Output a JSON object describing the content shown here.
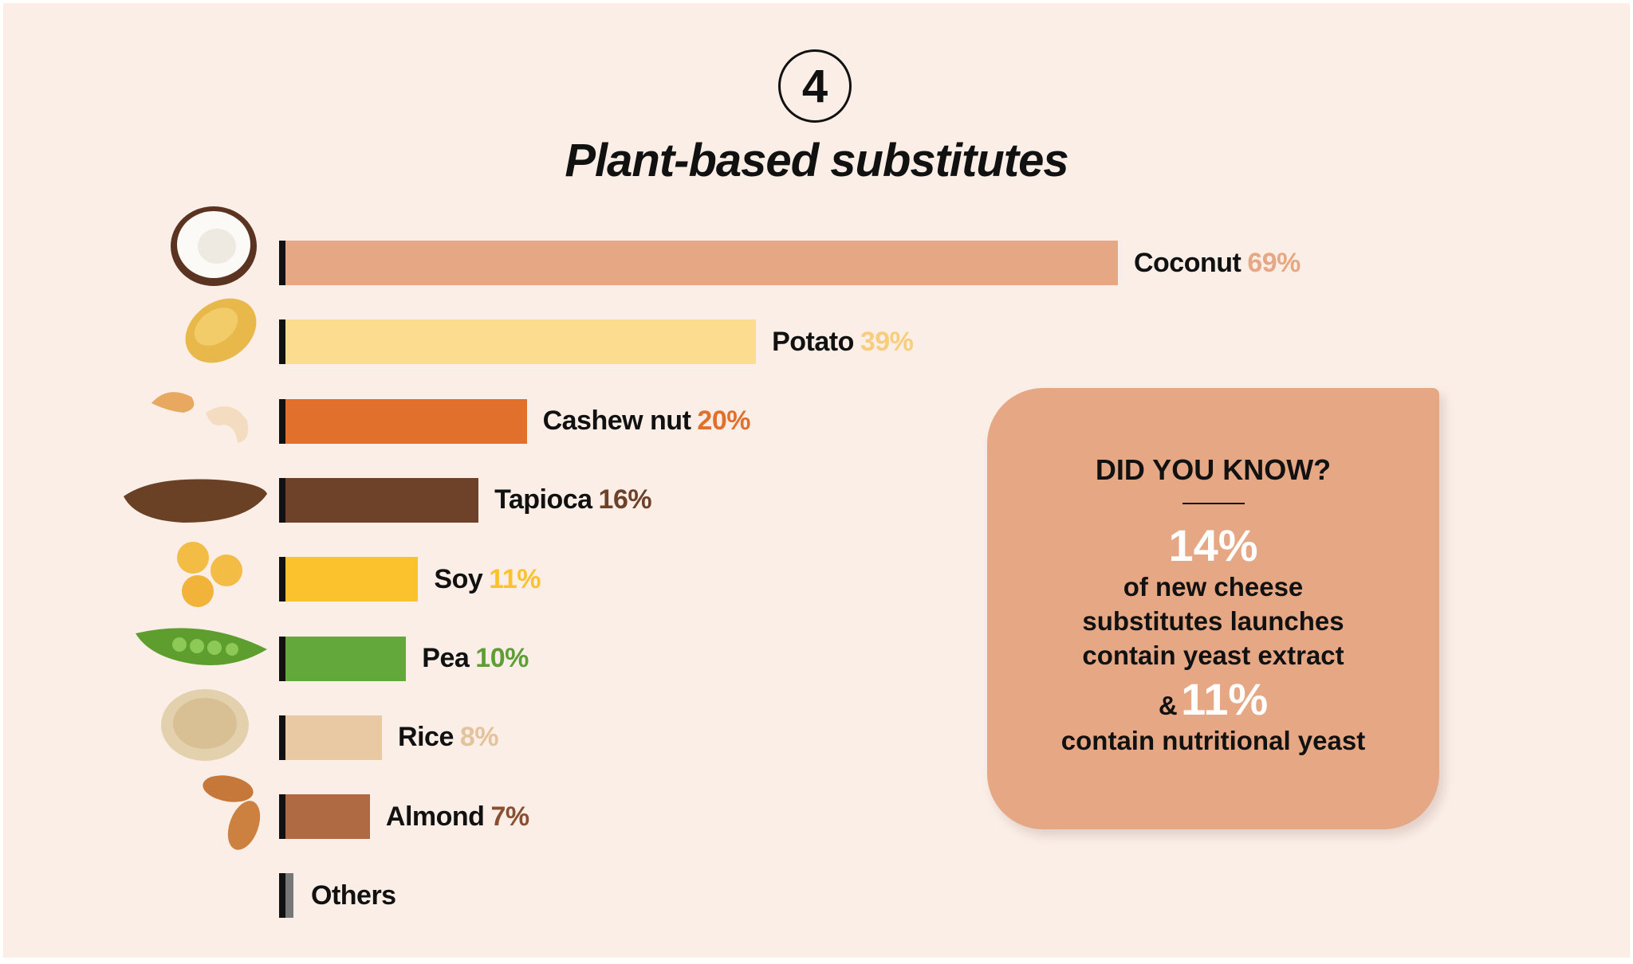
{
  "step_number": "4",
  "chart_data": {
    "type": "bar",
    "orientation": "horizontal",
    "title": "Plant-based substitutes",
    "categories": [
      "Coconut",
      "Potato",
      "Cashew nut",
      "Tapioca",
      "Soy",
      "Pea",
      "Rice",
      "Almond",
      "Others"
    ],
    "values": [
      69,
      39,
      20,
      16,
      11,
      10,
      8,
      7,
      null
    ],
    "value_labels": [
      "69%",
      "39%",
      "20%",
      "16%",
      "11%",
      "10%",
      "8%",
      "7%",
      ""
    ],
    "colors": [
      "#E6A884",
      "#FCDC8E",
      "#E0702C",
      "#6E4129",
      "#FCC22E",
      "#63A83A",
      "#E8C9A4",
      "#B06A43",
      "#777777"
    ],
    "label_colors": [
      "#E6A884",
      "#F8CE7E",
      "#E0702C",
      "#6E4129",
      "#FCC22E",
      "#5E9E35",
      "#E3C29C",
      "#8A4F30",
      "#111111"
    ],
    "xlabel": "",
    "ylabel": "",
    "xlim": [
      0,
      100
    ],
    "grid": false
  },
  "callout": {
    "heading": "DID YOU KNOW?",
    "stat1": "14%",
    "line1": "of new cheese",
    "line2": "substitutes launches",
    "line3": "contain yeast extract",
    "amp": "&",
    "stat2": "11%",
    "line4": "contain nutritional yeast"
  }
}
